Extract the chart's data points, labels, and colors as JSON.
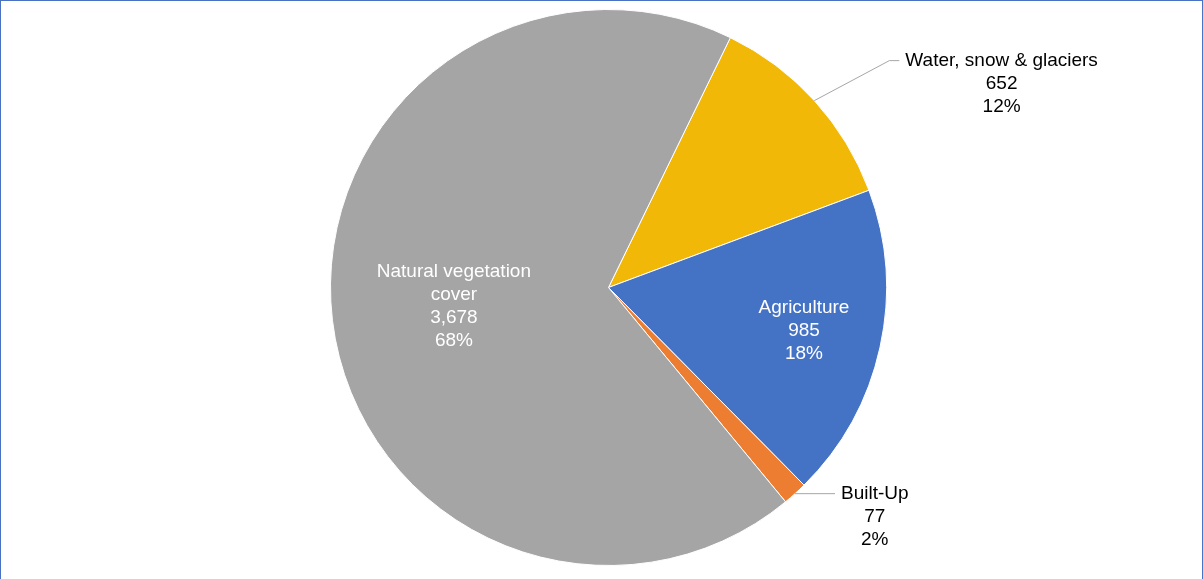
{
  "chart_data": {
    "type": "pie",
    "categories": [
      "Water, snow & glaciers",
      "Agriculture",
      "Built-Up",
      "Natural vegetation cover"
    ],
    "values": [
      652,
      985,
      77,
      3678
    ],
    "value_labels": [
      "652\n12%",
      "985\n18%",
      "77\n2%",
      "3,678\n68%"
    ],
    "colors": [
      "#f2b807",
      "#4472c4",
      "#ed7d31",
      "#a5a5a5"
    ],
    "legend": false
  }
}
